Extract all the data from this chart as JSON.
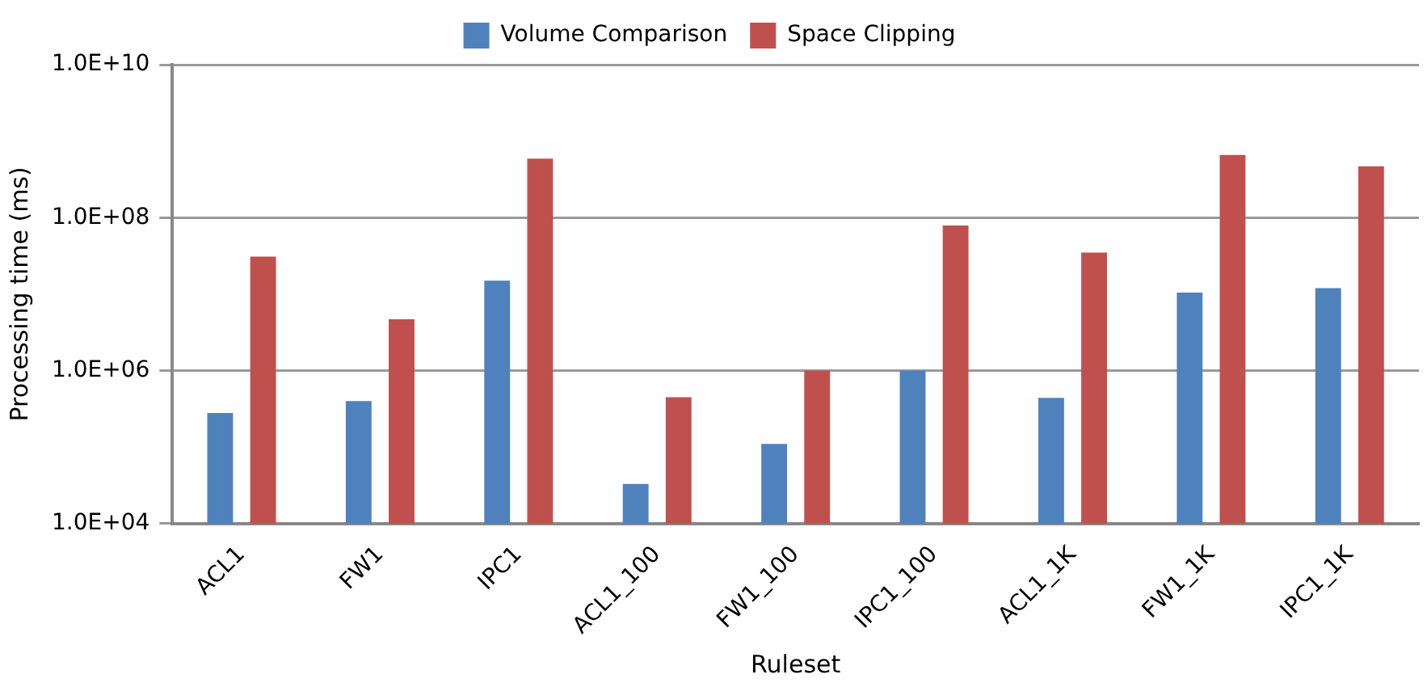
{
  "chart_data": {
    "type": "bar",
    "xlabel": "Ruleset",
    "ylabel": "Processing time (ms)",
    "categories": [
      "ACL1",
      "FW1",
      "IPC1",
      "ACL1_100",
      "FW1_100",
      "IPC1_100",
      "ACL1_1K",
      "FW1_1K",
      "IPC1_1K"
    ],
    "series": [
      {
        "name": "Volume Comparison",
        "color": "#4f81bd",
        "values": [
          280000,
          400000,
          15000000,
          33000,
          110000,
          1000000,
          440000,
          10500000,
          12000000
        ]
      },
      {
        "name": "Space Clipping",
        "color": "#c0504d",
        "values": [
          31000000,
          4700000,
          590000000,
          450000,
          1000000,
          79000000,
          35000000,
          660000000,
          470000000
        ]
      }
    ],
    "log": "y",
    "ylim": [
      10000,
      10000000000
    ],
    "yticks": [
      {
        "value": 10000,
        "label": "1.0E+04"
      },
      {
        "value": 1000000,
        "label": "1.0E+06"
      },
      {
        "value": 100000000,
        "label": "1.0E+08"
      },
      {
        "value": 10000000000,
        "label": "1.0E+10"
      }
    ],
    "grid": "y",
    "legend": "top"
  }
}
